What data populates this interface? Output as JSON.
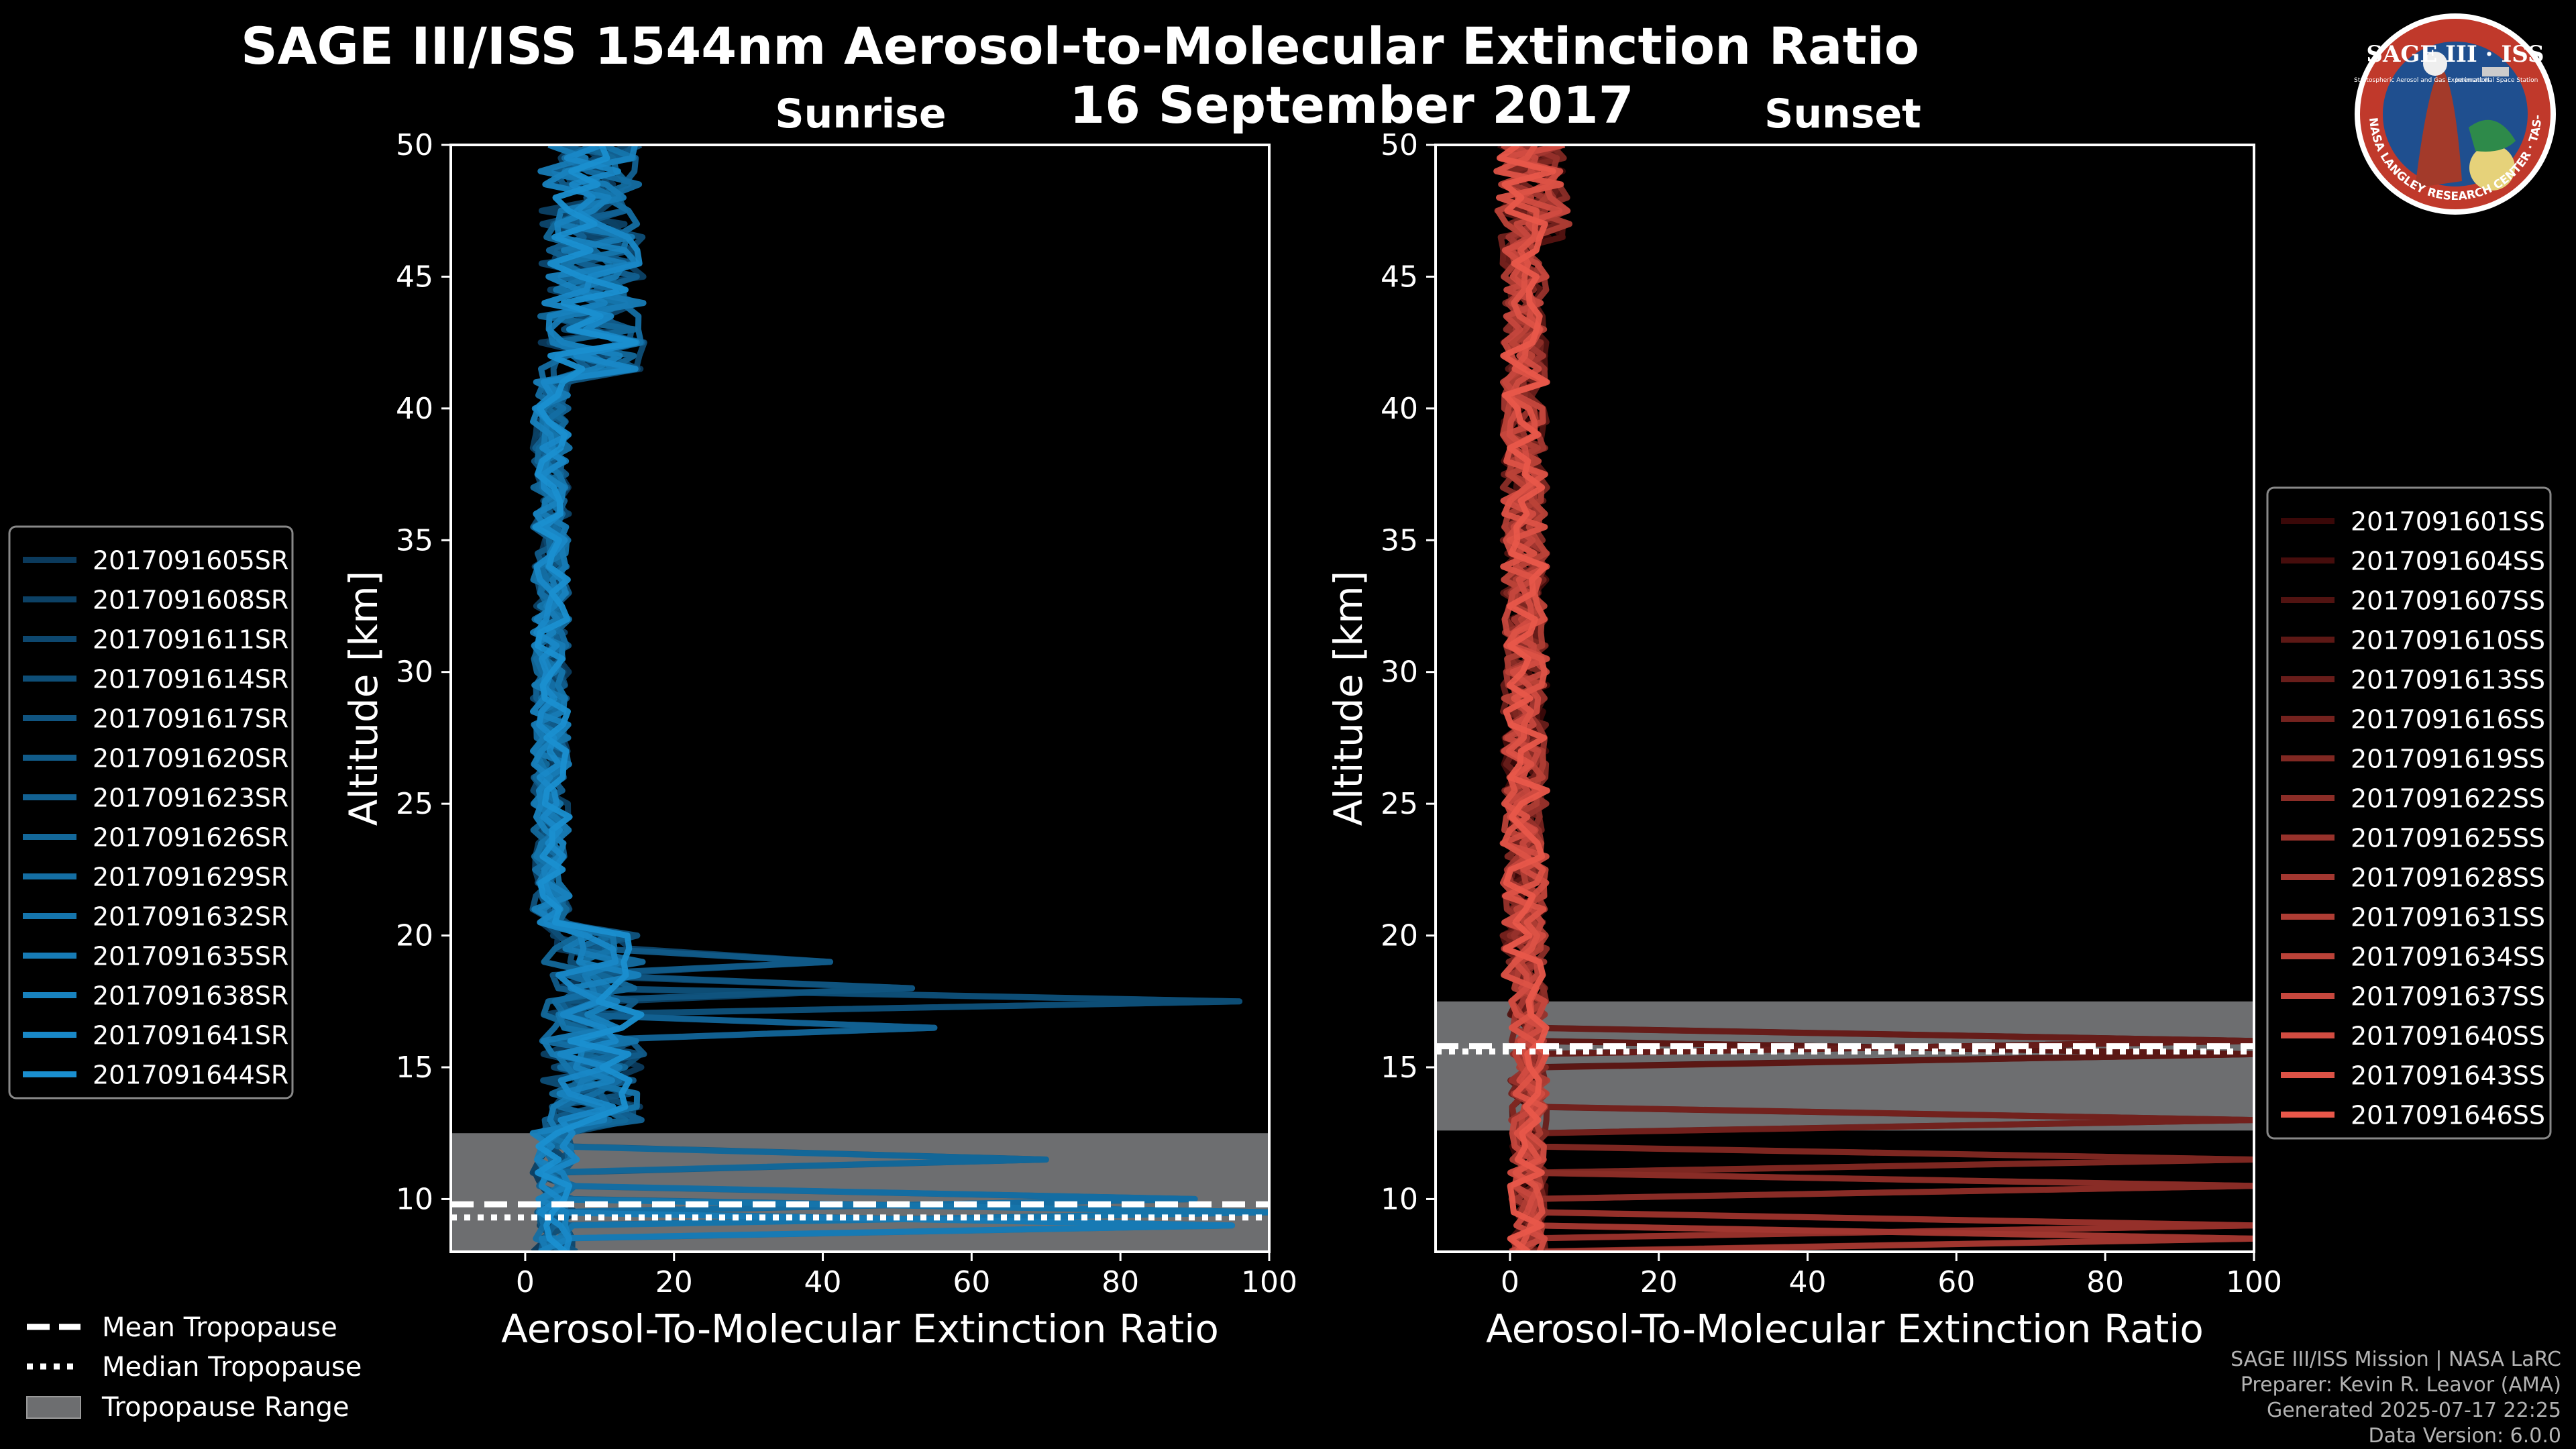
{
  "title_line1": "SAGE III/ISS 1544nm Aerosol-to-Molecular Extinction Ratio",
  "title_line2": "16 September 2017",
  "logo": {
    "name": "SAGE III · ISS",
    "ring_text": "BALL · NASA LANGLEY RESEARCH CENTER · TAS-I · ESA",
    "sub_left": "Stratospheric Aerosol and Gas Experiment III",
    "sub_right": "International Space Station",
    "ring_color": "#c0392b",
    "bg_color": "#1f4f8f"
  },
  "footer": {
    "line1": "SAGE III/ISS Mission | NASA LaRC",
    "line2": "Preparer: Kevin R. Leavor (AMA)",
    "line3": "Generated 2025-07-17 22:25",
    "line4": "Data Version: 6.0.0"
  },
  "tropopause_legend": {
    "mean": "Mean Tropopause",
    "median": "Median Tropopause",
    "range": "Tropopause Range",
    "range_color": "#6d6e70"
  },
  "chart_data": [
    {
      "type": "line",
      "title": "Sunrise",
      "xlabel": "Aerosol-To-Molecular Extinction Ratio",
      "ylabel": "Altitude [km]",
      "xlim": [
        -10,
        100
      ],
      "ylim": [
        8,
        50
      ],
      "xticks": [
        0,
        20,
        40,
        60,
        80,
        100
      ],
      "yticks": [
        10,
        15,
        20,
        25,
        30,
        35,
        40,
        45,
        50
      ],
      "color_dark": "#0b3a5c",
      "color_light": "#1a8fd0",
      "tropopause": {
        "mean": 9.8,
        "median": 9.3,
        "range": [
          8,
          12.5
        ]
      },
      "series_names": [
        "2017091605SR",
        "2017091608SR",
        "2017091611SR",
        "2017091614SR",
        "2017091617SR",
        "2017091620SR",
        "2017091623SR",
        "2017091626SR",
        "2017091629SR",
        "2017091632SR",
        "2017091635SR",
        "2017091638SR",
        "2017091641SR",
        "2017091644SR"
      ],
      "peaks": [
        {
          "alt": 17.5,
          "value": 96
        },
        {
          "alt": 18.0,
          "value": 52
        },
        {
          "alt": 19.0,
          "value": 41
        },
        {
          "alt": 16.5,
          "value": 55
        },
        {
          "alt": 11.5,
          "value": 70
        },
        {
          "alt": 10.2,
          "value": 90
        },
        {
          "alt": 9.5,
          "value": 100
        },
        {
          "alt": 9.0,
          "value": 95
        }
      ]
    },
    {
      "type": "line",
      "title": "Sunset",
      "xlabel": "Aerosol-To-Molecular Extinction Ratio",
      "ylabel": "Altitude [km]",
      "xlim": [
        -10,
        100
      ],
      "ylim": [
        8,
        50
      ],
      "xticks": [
        0,
        20,
        40,
        60,
        80,
        100
      ],
      "yticks": [
        10,
        15,
        20,
        25,
        30,
        35,
        40,
        45,
        50
      ],
      "color_dark": "#3a0808",
      "color_light": "#e8574a",
      "tropopause": {
        "mean": 15.8,
        "median": 15.6,
        "range": [
          12.6,
          17.5
        ]
      },
      "series_names": [
        "2017091601SS",
        "2017091604SS",
        "2017091607SS",
        "2017091610SS",
        "2017091613SS",
        "2017091616SS",
        "2017091619SS",
        "2017091622SS",
        "2017091625SS",
        "2017091628SS",
        "2017091631SS",
        "2017091634SS",
        "2017091637SS",
        "2017091640SS",
        "2017091643SS",
        "2017091646SS"
      ],
      "peaks": [
        {
          "alt": 15.5,
          "value": 100
        },
        {
          "alt": 16.0,
          "value": 100
        },
        {
          "alt": 12.8,
          "value": 100
        },
        {
          "alt": 11.3,
          "value": 100
        },
        {
          "alt": 10.5,
          "value": 100
        },
        {
          "alt": 9.2,
          "value": 100
        },
        {
          "alt": 8.5,
          "value": 100
        }
      ]
    }
  ]
}
